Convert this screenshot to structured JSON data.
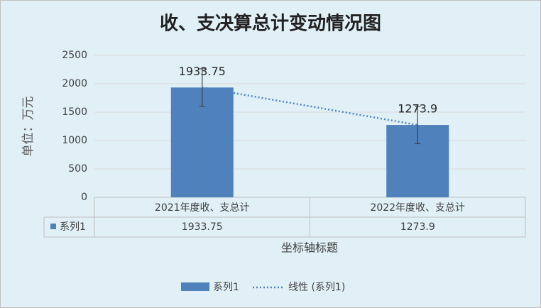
{
  "chart_data": {
    "type": "bar",
    "title": "收、支决算总计变动情况图",
    "y_label": "单位：万元",
    "x_label": "坐标轴标题",
    "categories": [
      "2021年度收、支总计",
      "2022年度收、支总计"
    ],
    "series": [
      {
        "name": "系列1",
        "color": "#4f81bd",
        "values": [
          1933.75,
          1273.9
        ],
        "error": [
          330,
          330
        ]
      }
    ],
    "trendline": {
      "name": "线性 (系列1)",
      "type": "linear",
      "color": "#4f81bd"
    },
    "ylim": [
      0,
      2500
    ],
    "yticks": [
      0,
      500,
      1000,
      1500,
      2000,
      2500
    ],
    "grid": true,
    "legend": "bottom",
    "data_table": true
  }
}
